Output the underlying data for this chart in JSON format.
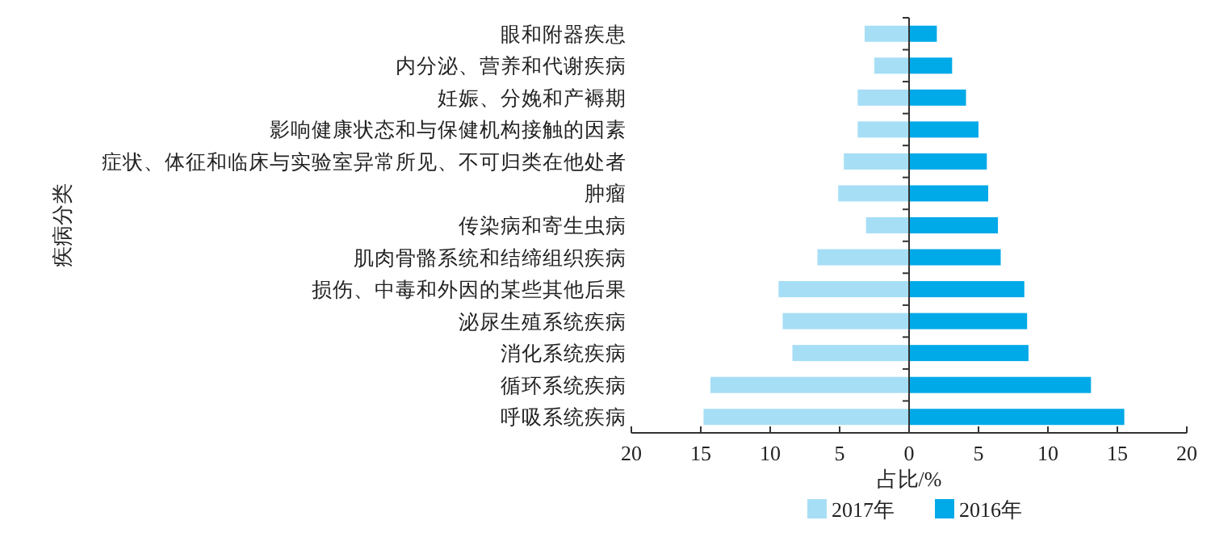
{
  "chart_data": {
    "type": "bar",
    "orientation": "horizontal",
    "xlabel": "占比/%",
    "ylabel": "疾病分类",
    "categories": [
      "眼和附器疾患",
      "内分泌、营养和代谢疾病",
      "妊娠、分娩和产褥期",
      "影响健康状态和与保健机构接触的因素",
      "症状、体征和临床与实验室异常所见、不可归类在他处者",
      "肿瘤",
      "传染病和寄生虫病",
      "肌肉骨骼系统和结缔组织疾病",
      "损伤、中毒和外因的某些其他后果",
      "泌尿生殖系统疾病",
      "消化系统疾病",
      "循环系统疾病",
      "呼吸系统疾病"
    ],
    "series": [
      {
        "name": "2017年",
        "color": "#a6def5",
        "values": [
          -3.2,
          -2.5,
          -3.7,
          -3.7,
          -4.7,
          -5.1,
          -3.1,
          -6.6,
          -9.4,
          -9.1,
          -8.4,
          -14.3,
          -14.8
        ]
      },
      {
        "name": "2016年",
        "color": "#00a9e8",
        "values": [
          2.0,
          3.1,
          4.1,
          5.0,
          5.6,
          5.7,
          6.4,
          6.6,
          8.3,
          8.5,
          8.6,
          13.1,
          15.5
        ]
      }
    ],
    "xlim": [
      -20,
      20
    ],
    "xticks": [
      {
        "value": -20,
        "label": "20"
      },
      {
        "value": -15,
        "label": "15"
      },
      {
        "value": -10,
        "label": "10"
      },
      {
        "value": -5,
        "label": "5"
      },
      0,
      5,
      10,
      15,
      20
    ],
    "legend": "bottom",
    "stacked": true
  }
}
